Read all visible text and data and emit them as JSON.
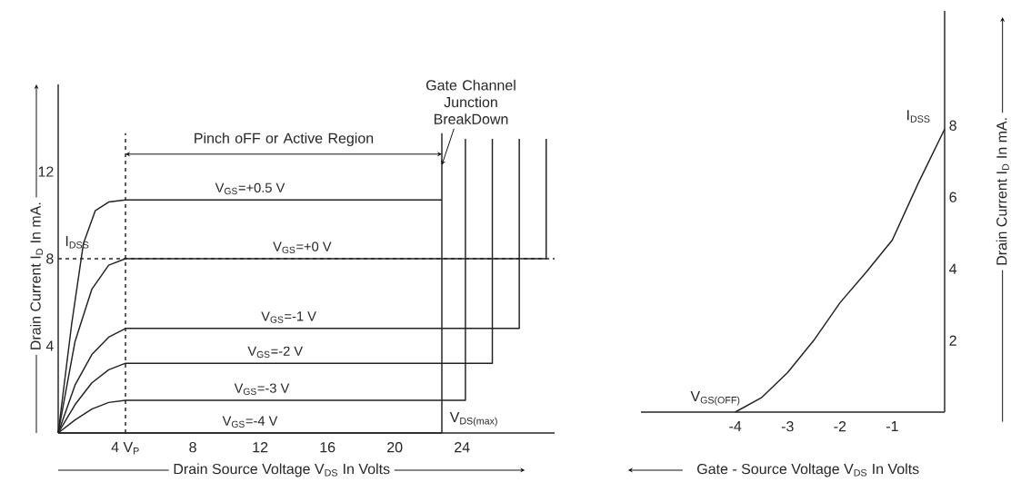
{
  "chart_data": [
    {
      "type": "line",
      "xlabel": "Drain Source Voltage V$_{DS}$ In Volts",
      "ylabel": "Drain Current  I$_{D}$ In mA.",
      "xlim": [
        0,
        29.5
      ],
      "ylim": [
        0,
        16
      ],
      "xticks": [
        {
          "value": 4,
          "label": "4 V$_{P}$"
        },
        8,
        12,
        16,
        20,
        24
      ],
      "yticks": [
        4,
        8,
        12
      ],
      "series": [
        {
          "name": "V$_{GS}$=+0.5 V",
          "color": "#222222",
          "x": [
            0,
            0.8,
            1.5,
            2.2,
            3,
            4,
            22.8
          ],
          "values": [
            0,
            5,
            8.7,
            10.2,
            10.6,
            10.7,
            10.7
          ]
        },
        {
          "name": "V$_{GS}$=+0 V",
          "color": "#222222",
          "x": [
            0,
            1,
            2,
            3,
            4,
            29,
            29
          ],
          "values": [
            0,
            4.2,
            6.6,
            7.7,
            8,
            8,
            13.5
          ]
        },
        {
          "name": "V$_{GS}$=-1 V",
          "color": "#222222",
          "x": [
            0,
            1,
            2,
            3,
            4,
            27.4,
            27.4
          ],
          "values": [
            0,
            2.2,
            3.6,
            4.4,
            4.8,
            4.8,
            13.5
          ]
        },
        {
          "name": "V$_{GS}$=-2 V",
          "color": "#222222",
          "x": [
            0,
            1,
            2,
            3,
            4,
            25.8,
            25.8
          ],
          "values": [
            0,
            1.3,
            2.3,
            2.9,
            3.2,
            3.2,
            13.5
          ]
        },
        {
          "name": "V$_{GS}$=-3 V",
          "color": "#222222",
          "x": [
            0,
            1,
            2,
            3,
            4,
            24.2,
            24.2
          ],
          "values": [
            0,
            0.6,
            1.1,
            1.4,
            1.5,
            1.5,
            13.5
          ]
        },
        {
          "name": "V$_{GS}$=-4 V",
          "color": "#222222",
          "x": [
            0,
            22.8
          ],
          "values": [
            0,
            0
          ]
        }
      ],
      "ref_lines": [
        {
          "axis": "x",
          "value": 4,
          "line_style": "dashed"
        },
        {
          "axis": "y",
          "value": 8,
          "label": "I$_{DSS}$",
          "line_style": "dashed"
        },
        {
          "axis": "x",
          "value": 22.8,
          "label": "V$_{DS(max)}$"
        }
      ],
      "annotations": [
        "Pinch  oFF or Active Region",
        {
          "text": "Gate Channel Junction BreakDown",
          "x": 22.8,
          "y": 12.3
        }
      ]
    },
    {
      "type": "line",
      "xlabel": "Gate - Source Voltage V$_{DS}$ In Volts",
      "ylabel": "Drain Current  I$_{D}$ In mA.",
      "xlim": [
        -5.8,
        0
      ],
      "ylim": [
        0,
        11.2
      ],
      "xticks": [
        -4,
        -3,
        -2,
        -1
      ],
      "yticks": [
        2,
        4,
        6,
        8
      ],
      "x": [
        -4,
        -3.5,
        -3,
        -2.5,
        -2,
        -1.5,
        -1,
        -0.5,
        0
      ],
      "values": [
        0,
        0.4,
        1.1,
        2.0,
        3.05,
        3.9,
        4.8,
        6.4,
        7.9
      ],
      "color": "#222222",
      "annotations": [
        {
          "text": "V$_{GS(OFF)}$",
          "x": -4,
          "y": 0
        },
        {
          "text": "I$_{DSS}$",
          "x": 0,
          "y": 7.9
        }
      ]
    }
  ]
}
